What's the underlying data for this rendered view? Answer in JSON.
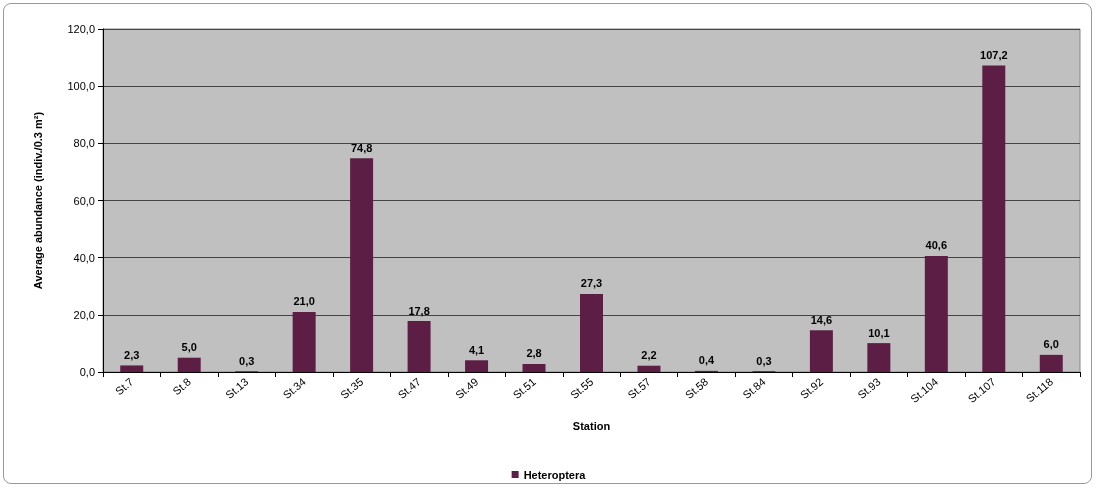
{
  "chart_data": {
    "type": "bar",
    "xlabel": "Station",
    "ylabel": "Average abundance (indiv./0.3 m²)",
    "categories": [
      "St.7",
      "St.8",
      "St.13",
      "St.34",
      "St.35",
      "St.47",
      "St.49",
      "St.51",
      "St.55",
      "St.57",
      "St.58",
      "St.84",
      "St.92",
      "St.93",
      "St.104",
      "St.107",
      "St.118"
    ],
    "series": [
      {
        "name": "Heteroptera",
        "color": "#5c1e44",
        "values": [
          2.3,
          5.0,
          0.3,
          21.0,
          74.8,
          17.8,
          4.1,
          2.8,
          27.3,
          2.2,
          0.4,
          0.3,
          14.6,
          10.1,
          40.6,
          107.2,
          6.0
        ],
        "value_labels": [
          "2,3",
          "5,0",
          "0,3",
          "21,0",
          "74,8",
          "17,8",
          "4,1",
          "2,8",
          "27,3",
          "2,2",
          "0,4",
          "0,3",
          "14,6",
          "10,1",
          "40,6",
          "107,2",
          "6,0"
        ]
      }
    ],
    "ylim": [
      0,
      120
    ],
    "yticks": [
      {
        "value": 0,
        "label": "0,0"
      },
      {
        "value": 20,
        "label": "20,0"
      },
      {
        "value": 40,
        "label": "40,0"
      },
      {
        "value": 60,
        "label": "60,0"
      },
      {
        "value": 80,
        "label": "80,0"
      },
      {
        "value": 100,
        "label": "100,0"
      },
      {
        "value": 120,
        "label": "120,0"
      }
    ],
    "grid": "y",
    "legend": "bottom"
  }
}
